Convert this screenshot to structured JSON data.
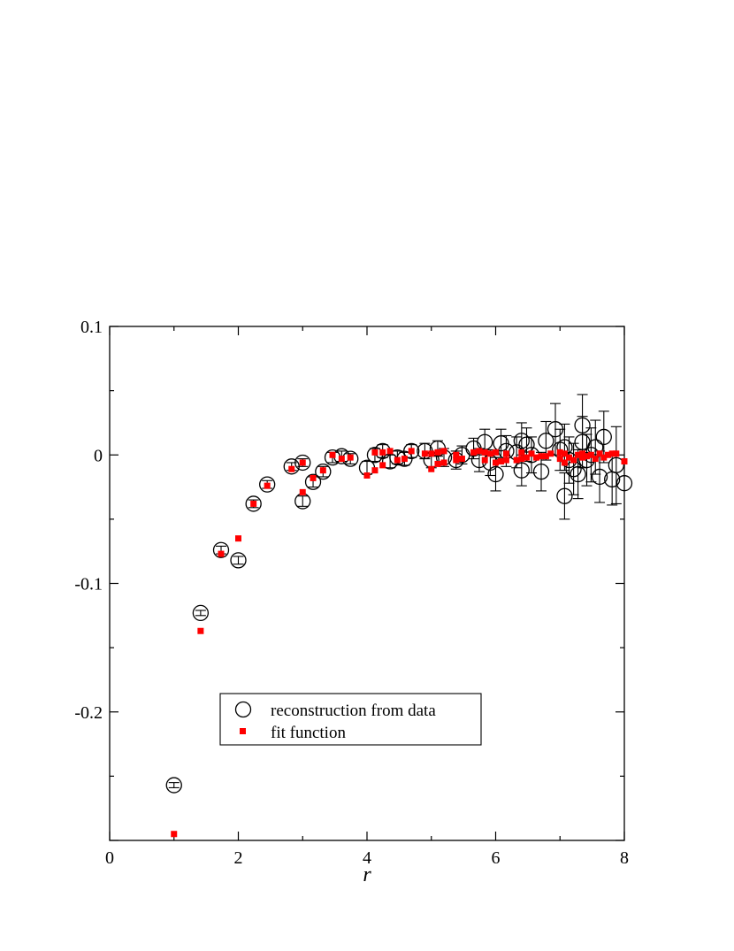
{
  "chart_data": {
    "type": "scatter",
    "title": "",
    "xlabel": "r",
    "ylabel": "",
    "xlim": [
      0,
      8
    ],
    "ylim": [
      -0.3,
      0.1
    ],
    "x_ticks": [
      0,
      2,
      4,
      6,
      8
    ],
    "x_tick_labels": [
      "0",
      "2",
      "4",
      "6",
      "8"
    ],
    "y_ticks": [
      0.1,
      0,
      -0.1,
      -0.2
    ],
    "y_tick_labels": [
      "0.1",
      "0",
      "-0.1",
      "-0.2"
    ],
    "grid": false,
    "legend": {
      "position": "lower-center",
      "entries": [
        "reconstruction from data",
        "fit function"
      ]
    },
    "colors": {
      "data": "#000000",
      "fit": "#ff0000"
    },
    "series": [
      {
        "name": "reconstruction from data",
        "marker": "open-circle",
        "points": [
          {
            "x": 1.0,
            "y": -0.257,
            "err": 0.002
          },
          {
            "x": 1.414,
            "y": -0.123,
            "err": 0.002
          },
          {
            "x": 1.732,
            "y": -0.074,
            "err": 0.003
          },
          {
            "x": 2.0,
            "y": -0.082,
            "err": 0.003
          },
          {
            "x": 2.236,
            "y": -0.038,
            "err": 0.003
          },
          {
            "x": 2.449,
            "y": -0.023,
            "err": 0.003
          },
          {
            "x": 2.828,
            "y": -0.009,
            "err": 0.003
          },
          {
            "x": 3.0,
            "y": -0.036,
            "err": 0.004
          },
          {
            "x": 3.0,
            "y": -0.006,
            "err": 0.003
          },
          {
            "x": 3.162,
            "y": -0.021,
            "err": 0.004
          },
          {
            "x": 3.317,
            "y": -0.013,
            "err": 0.004
          },
          {
            "x": 3.464,
            "y": -0.002,
            "err": 0.004
          },
          {
            "x": 3.606,
            "y": -0.001,
            "err": 0.004
          },
          {
            "x": 3.742,
            "y": -0.003,
            "err": 0.004
          },
          {
            "x": 4.0,
            "y": -0.01,
            "err": 0.005
          },
          {
            "x": 4.123,
            "y": 0.0,
            "err": 0.005
          },
          {
            "x": 4.243,
            "y": 0.003,
            "err": 0.005
          },
          {
            "x": 4.359,
            "y": -0.005,
            "err": 0.005
          },
          {
            "x": 4.472,
            "y": -0.002,
            "err": 0.005
          },
          {
            "x": 4.583,
            "y": -0.003,
            "err": 0.005
          },
          {
            "x": 4.69,
            "y": 0.003,
            "err": 0.005
          },
          {
            "x": 4.899,
            "y": 0.003,
            "err": 0.006
          },
          {
            "x": 5.0,
            "y": -0.004,
            "err": 0.006
          },
          {
            "x": 5.099,
            "y": 0.005,
            "err": 0.006
          },
          {
            "x": 5.196,
            "y": -0.002,
            "err": 0.007
          },
          {
            "x": 5.385,
            "y": -0.004,
            "err": 0.007
          },
          {
            "x": 5.477,
            "y": 0.0,
            "err": 0.007
          },
          {
            "x": 5.657,
            "y": 0.005,
            "err": 0.008
          },
          {
            "x": 5.745,
            "y": -0.004,
            "err": 0.009
          },
          {
            "x": 5.831,
            "y": 0.01,
            "err": 0.01
          },
          {
            "x": 5.916,
            "y": -0.006,
            "err": 0.01
          },
          {
            "x": 6.0,
            "y": -0.015,
            "err": 0.013
          },
          {
            "x": 6.083,
            "y": 0.009,
            "err": 0.011
          },
          {
            "x": 6.164,
            "y": 0.003,
            "err": 0.012
          },
          {
            "x": 6.325,
            "y": 0.002,
            "err": 0.012
          },
          {
            "x": 6.403,
            "y": 0.011,
            "err": 0.014
          },
          {
            "x": 6.403,
            "y": -0.012,
            "err": 0.012
          },
          {
            "x": 6.481,
            "y": 0.008,
            "err": 0.013
          },
          {
            "x": 6.557,
            "y": 0.0,
            "err": 0.014
          },
          {
            "x": 6.708,
            "y": -0.013,
            "err": 0.015
          },
          {
            "x": 6.782,
            "y": 0.011,
            "err": 0.015
          },
          {
            "x": 6.928,
            "y": 0.02,
            "err": 0.02
          },
          {
            "x": 7.0,
            "y": 0.004,
            "err": 0.016
          },
          {
            "x": 7.071,
            "y": -0.032,
            "err": 0.018
          },
          {
            "x": 7.071,
            "y": 0.006,
            "err": 0.018
          },
          {
            "x": 7.141,
            "y": -0.004,
            "err": 0.018
          },
          {
            "x": 7.211,
            "y": -0.011,
            "err": 0.02
          },
          {
            "x": 7.28,
            "y": -0.015,
            "err": 0.019
          },
          {
            "x": 7.348,
            "y": 0.023,
            "err": 0.024
          },
          {
            "x": 7.348,
            "y": 0.01,
            "err": 0.02
          },
          {
            "x": 7.416,
            "y": -0.004,
            "err": 0.02
          },
          {
            "x": 7.483,
            "y": 0.0,
            "err": 0.021
          },
          {
            "x": 7.55,
            "y": 0.006,
            "err": 0.021
          },
          {
            "x": 7.616,
            "y": -0.017,
            "err": 0.02
          },
          {
            "x": 7.681,
            "y": 0.014,
            "err": 0.02
          },
          {
            "x": 7.81,
            "y": -0.019,
            "err": 0.02
          },
          {
            "x": 7.874,
            "y": -0.008,
            "err": 0.03
          },
          {
            "x": 8.0,
            "y": -0.022,
            "err": 0.0
          }
        ]
      },
      {
        "name": "fit function",
        "marker": "filled-square",
        "points": [
          {
            "x": 1.0,
            "y": -0.295
          },
          {
            "x": 1.414,
            "y": -0.137
          },
          {
            "x": 1.732,
            "y": -0.077
          },
          {
            "x": 2.0,
            "y": -0.065
          },
          {
            "x": 2.236,
            "y": -0.038
          },
          {
            "x": 2.449,
            "y": -0.024
          },
          {
            "x": 2.828,
            "y": -0.011
          },
          {
            "x": 3.0,
            "y": -0.029
          },
          {
            "x": 3.0,
            "y": -0.006
          },
          {
            "x": 3.162,
            "y": -0.018
          },
          {
            "x": 3.317,
            "y": -0.012
          },
          {
            "x": 3.464,
            "y": 0.0
          },
          {
            "x": 3.606,
            "y": -0.003
          },
          {
            "x": 3.742,
            "y": -0.002
          },
          {
            "x": 4.0,
            "y": -0.016
          },
          {
            "x": 4.123,
            "y": -0.012
          },
          {
            "x": 4.123,
            "y": 0.002
          },
          {
            "x": 4.243,
            "y": -0.008
          },
          {
            "x": 4.243,
            "y": 0.002
          },
          {
            "x": 4.359,
            "y": 0.003
          },
          {
            "x": 4.472,
            "y": -0.004
          },
          {
            "x": 4.583,
            "y": -0.003
          },
          {
            "x": 4.69,
            "y": 0.003
          },
          {
            "x": 4.899,
            "y": 0.001
          },
          {
            "x": 5.0,
            "y": -0.011
          },
          {
            "x": 5.0,
            "y": 0.001
          },
          {
            "x": 5.099,
            "y": -0.007
          },
          {
            "x": 5.099,
            "y": 0.002
          },
          {
            "x": 5.196,
            "y": -0.006
          },
          {
            "x": 5.196,
            "y": 0.003
          },
          {
            "x": 5.385,
            "y": -0.004
          },
          {
            "x": 5.385,
            "y": 0.0
          },
          {
            "x": 5.477,
            "y": -0.003
          },
          {
            "x": 5.657,
            "y": 0.002
          },
          {
            "x": 5.745,
            "y": 0.003
          },
          {
            "x": 5.831,
            "y": 0.002
          },
          {
            "x": 5.831,
            "y": -0.004
          },
          {
            "x": 5.916,
            "y": 0.001
          },
          {
            "x": 6.0,
            "y": -0.006
          },
          {
            "x": 6.0,
            "y": 0.002
          },
          {
            "x": 6.083,
            "y": -0.005
          },
          {
            "x": 6.164,
            "y": -0.004
          },
          {
            "x": 6.164,
            "y": 0.001
          },
          {
            "x": 6.325,
            "y": -0.004
          },
          {
            "x": 6.403,
            "y": -0.003
          },
          {
            "x": 6.403,
            "y": 0.002
          },
          {
            "x": 6.481,
            "y": -0.002
          },
          {
            "x": 6.557,
            "y": 0.001
          },
          {
            "x": 6.633,
            "y": -0.002
          },
          {
            "x": 6.708,
            "y": -0.001
          },
          {
            "x": 6.782,
            "y": -0.001
          },
          {
            "x": 6.856,
            "y": 0.001
          },
          {
            "x": 7.0,
            "y": -0.003
          },
          {
            "x": 7.0,
            "y": 0.002
          },
          {
            "x": 7.071,
            "y": -0.006
          },
          {
            "x": 7.071,
            "y": 0.001
          },
          {
            "x": 7.141,
            "y": -0.002
          },
          {
            "x": 7.211,
            "y": -0.004
          },
          {
            "x": 7.28,
            "y": 0.0
          },
          {
            "x": 7.348,
            "y": -0.002
          },
          {
            "x": 7.348,
            "y": 0.001
          },
          {
            "x": 7.416,
            "y": -0.001
          },
          {
            "x": 7.483,
            "y": 0.0
          },
          {
            "x": 7.55,
            "y": -0.003
          },
          {
            "x": 7.616,
            "y": 0.001
          },
          {
            "x": 7.681,
            "y": -0.002
          },
          {
            "x": 7.746,
            "y": 0.0
          },
          {
            "x": 7.81,
            "y": 0.001
          },
          {
            "x": 7.874,
            "y": 0.001
          },
          {
            "x": 8.0,
            "y": -0.005
          }
        ]
      }
    ]
  }
}
